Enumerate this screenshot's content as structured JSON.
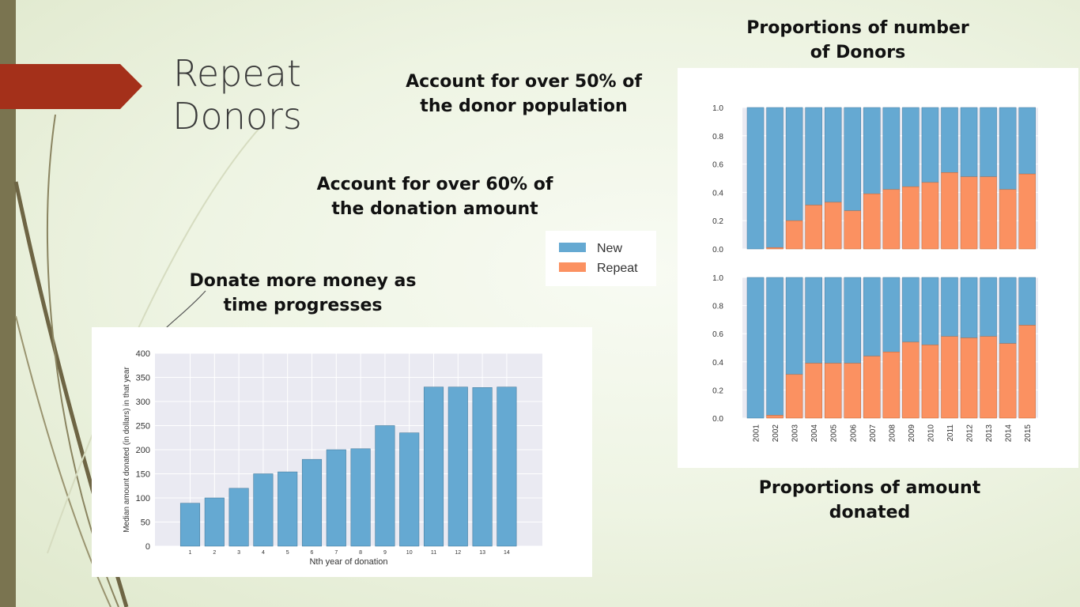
{
  "slide": {
    "title_lines": [
      "Repeat",
      "Donors"
    ],
    "callouts": {
      "population": [
        "Account for over 50% of",
        "the donor population"
      ],
      "amount": [
        "Account for over 60% of",
        "the donation amount"
      ],
      "money": [
        "Donate more money as",
        "time progresses"
      ],
      "top_right": [
        "Proportions of number",
        "of Donors"
      ],
      "bottom_right": [
        "Proportions of amount",
        "donated"
      ]
    },
    "colors": {
      "accent": "#a4301a",
      "bar_blue": "#65a9d2",
      "bar_orange": "#fb9161",
      "plot_bg": "#eaeaf2"
    }
  },
  "chart_data": [
    {
      "type": "bar",
      "categories": [
        "1",
        "2",
        "3",
        "4",
        "5",
        "6",
        "7",
        "8",
        "9",
        "10",
        "11",
        "12",
        "13",
        "14"
      ],
      "values": [
        89,
        100,
        120,
        150,
        154,
        180,
        200,
        202,
        250,
        235,
        330,
        330,
        329,
        330
      ],
      "xlabel": "Nth year of donation",
      "ylabel": "Median amount donated (in dollars) in that year",
      "ylim": [
        0,
        400
      ],
      "yticks": [
        "0",
        "50",
        "100",
        "150",
        "200",
        "250",
        "300",
        "350",
        "400"
      ]
    },
    {
      "type": "bar",
      "stacked": true,
      "categories": [
        "2001",
        "2002",
        "2003",
        "2004",
        "2005",
        "2006",
        "2007",
        "2008",
        "2009",
        "2010",
        "2011",
        "2012",
        "2013",
        "2014",
        "2015"
      ],
      "series": [
        {
          "name": "Repeat",
          "values": [
            0.0,
            0.01,
            0.2,
            0.31,
            0.33,
            0.27,
            0.39,
            0.42,
            0.44,
            0.47,
            0.54,
            0.51,
            0.51,
            0.42,
            0.53
          ]
        },
        {
          "name": "New",
          "values": [
            1.0,
            0.99,
            0.8,
            0.69,
            0.67,
            0.73,
            0.61,
            0.58,
            0.56,
            0.53,
            0.46,
            0.49,
            0.49,
            0.58,
            0.47
          ]
        }
      ],
      "ylim": [
        0,
        1.0
      ],
      "yticks": [
        "0.0",
        "0.2",
        "0.4",
        "0.6",
        "0.8",
        "1.0"
      ]
    },
    {
      "type": "bar",
      "stacked": true,
      "categories": [
        "2001",
        "2002",
        "2003",
        "2004",
        "2005",
        "2006",
        "2007",
        "2008",
        "2009",
        "2010",
        "2011",
        "2012",
        "2013",
        "2014",
        "2015"
      ],
      "series": [
        {
          "name": "Repeat",
          "values": [
            0.0,
            0.02,
            0.31,
            0.39,
            0.39,
            0.39,
            0.44,
            0.47,
            0.54,
            0.52,
            0.58,
            0.57,
            0.58,
            0.53,
            0.66
          ]
        },
        {
          "name": "New",
          "values": [
            1.0,
            0.98,
            0.69,
            0.61,
            0.61,
            0.61,
            0.56,
            0.53,
            0.46,
            0.48,
            0.42,
            0.43,
            0.42,
            0.47,
            0.34
          ]
        }
      ],
      "ylim": [
        0,
        1.0
      ],
      "yticks": [
        "0.0",
        "0.2",
        "0.4",
        "0.6",
        "0.8",
        "1.0"
      ]
    }
  ],
  "legend": {
    "items": [
      "New",
      "Repeat"
    ]
  }
}
